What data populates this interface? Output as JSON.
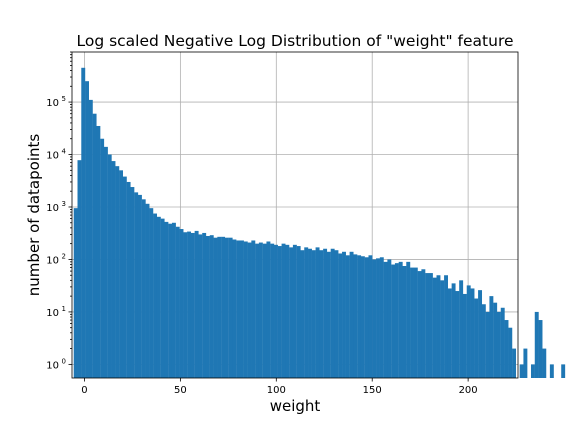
{
  "chart_data": {
    "type": "bar",
    "title": "Log scaled Negative Log Distribution of \"weight\" feature",
    "xlabel": "weight",
    "ylabel": "number of datapoints",
    "yscale": "log",
    "grid": true,
    "xlim": [
      -6.5,
      226
    ],
    "ylim": [
      0.55,
      900000
    ],
    "xticks": [
      0,
      50,
      100,
      150,
      200
    ],
    "yticks": [
      {
        "value": 1,
        "base": "10",
        "exp": "0"
      },
      {
        "value": 10,
        "base": "10",
        "exp": "1"
      },
      {
        "value": 100,
        "base": "10",
        "exp": "2"
      },
      {
        "value": 1000,
        "base": "10",
        "exp": "3"
      },
      {
        "value": 10000,
        "base": "10",
        "exp": "4"
      },
      {
        "value": 100000,
        "base": "10",
        "exp": "5"
      }
    ],
    "bar_color": "#1f77b4",
    "bin_start": -5.6,
    "bin_width": 1.97,
    "counts": [
      950,
      7800,
      450000,
      250000,
      110000,
      60000,
      35000,
      20000,
      14000,
      10000,
      7500,
      6000,
      5000,
      3800,
      3000,
      2400,
      1900,
      1700,
      1400,
      1150,
      950,
      750,
      650,
      600,
      520,
      480,
      500,
      420,
      380,
      330,
      340,
      320,
      350,
      300,
      320,
      280,
      290,
      260,
      270,
      270,
      260,
      260,
      240,
      230,
      230,
      220,
      210,
      230,
      200,
      210,
      200,
      220,
      200,
      190,
      180,
      200,
      190,
      170,
      190,
      180,
      150,
      170,
      160,
      150,
      170,
      150,
      160,
      140,
      160,
      150,
      130,
      140,
      120,
      140,
      125,
      120,
      115,
      110,
      120,
      100,
      105,
      110,
      90,
      100,
      80,
      85,
      90,
      75,
      90,
      70,
      70,
      60,
      65,
      55,
      55,
      45,
      50,
      40,
      50,
      28,
      35,
      25,
      40,
      22,
      32,
      28,
      18,
      26,
      14,
      10,
      20,
      15,
      10,
      12,
      7,
      5,
      2,
      0,
      1,
      2,
      0,
      1,
      10,
      7,
      2,
      0,
      1,
      0,
      0,
      1,
      0,
      0,
      0,
      0,
      1,
      0,
      0,
      0,
      0,
      0
    ]
  }
}
